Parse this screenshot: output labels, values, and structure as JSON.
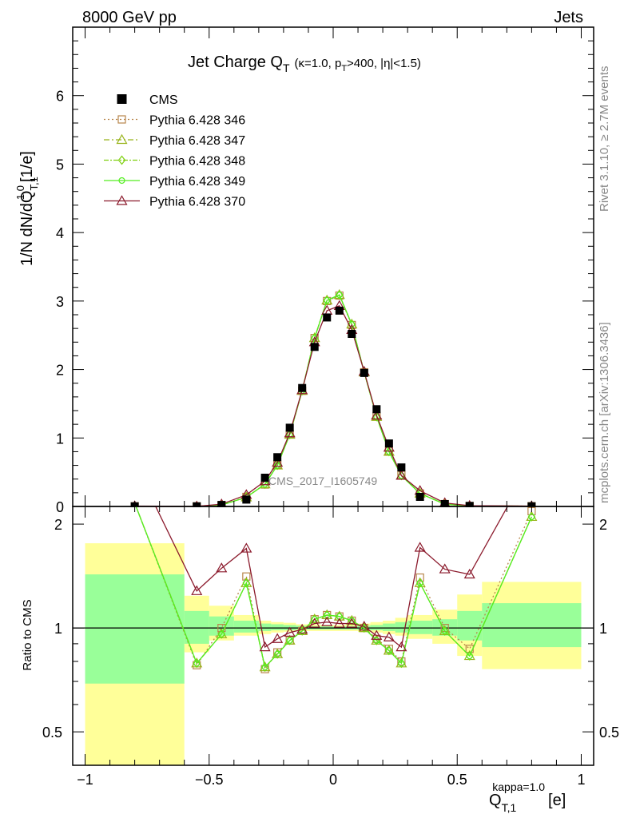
{
  "header": {
    "left": "8000 GeV pp",
    "right": "Jets"
  },
  "side": {
    "rivet": "Rivet 3.1.10, ≥ 2.7M events",
    "mcplots": "mcplots.cern.ch [arXiv:1306.3436]"
  },
  "watermark": "CMS_2017_I1605749",
  "chart_data": {
    "type": "line",
    "title": {
      "main": "Jet Charge Q",
      "main_sub": "T",
      "extra_pre": "(κ=1.0, p",
      "extra_sub": "T",
      "extra_post": ">400, |η|<1.5)"
    },
    "xlabel": {
      "base": "Q",
      "sub": "T,1",
      "sup": "kappa=1.0",
      "unit": "[e]"
    },
    "ylabel_main": {
      "base": "1/N dN/dQ",
      "sub": "T,1",
      "sup": "1.0",
      "unit": "[1/e]"
    },
    "ylabel_ratio": "Ratio to CMS",
    "xlim": [
      -1.05,
      1.05
    ],
    "ylim_main": [
      0,
      7.0
    ],
    "ylim_ratio": [
      0.4,
      2.25
    ],
    "xticks": [
      -1,
      -0.5,
      0,
      0.5,
      1
    ],
    "xtick_labels": [
      "−1",
      "−0.5",
      "0",
      "0.5",
      "1"
    ],
    "yticks_main": [
      0,
      1,
      2,
      3,
      4,
      5,
      6
    ],
    "yticks_ratio": [
      0.5,
      1,
      2
    ],
    "ytick_labels_ratio": [
      "0.5",
      "1",
      "2"
    ],
    "legend": {
      "position": "top-left",
      "entries": [
        "CMS",
        "Pythia 6.428 346",
        "Pythia 6.428 347",
        "Pythia 6.428 348",
        "Pythia 6.428 349",
        "Pythia 6.428 370"
      ]
    },
    "x": [
      -0.8,
      -0.55,
      -0.45,
      -0.35,
      -0.275,
      -0.225,
      -0.175,
      -0.125,
      -0.075,
      -0.025,
      0.025,
      0.075,
      0.125,
      0.175,
      0.225,
      0.275,
      0.35,
      0.45,
      0.55,
      0.8
    ],
    "bin_edges": [
      -1.0,
      -0.6,
      -0.5,
      -0.4,
      -0.3,
      -0.25,
      -0.2,
      -0.15,
      -0.1,
      -0.05,
      0.0,
      0.05,
      0.1,
      0.15,
      0.2,
      0.25,
      0.3,
      0.4,
      0.5,
      0.6,
      1.0
    ],
    "cms": [
      0.002,
      0.002,
      0.022,
      0.1,
      0.42,
      0.72,
      1.15,
      1.73,
      2.33,
      2.76,
      2.86,
      2.52,
      1.95,
      1.42,
      0.92,
      0.57,
      0.14,
      0.035,
      0.008,
      0.002
    ],
    "series": [
      {
        "name": "Pythia 6.428 346",
        "color": "#b8864b",
        "marker": "square",
        "dash": "2,3",
        "values": [
          0.003,
          0.0016,
          0.022,
          0.14,
          0.32,
          0.61,
          1.06,
          1.69,
          2.46,
          3.0,
          3.08,
          2.65,
          1.96,
          1.32,
          0.81,
          0.46,
          0.19,
          0.035,
          0.007,
          0.0045
        ]
      },
      {
        "name": "Pythia 6.428 347",
        "color": "#99b41c",
        "marker": "triangle",
        "dash": "7,3,2,3",
        "values": [
          0.003,
          0.0016,
          0.021,
          0.134,
          0.325,
          0.6,
          1.05,
          1.69,
          2.46,
          3.01,
          3.09,
          2.66,
          1.96,
          1.31,
          0.8,
          0.45,
          0.19,
          0.034,
          0.0066,
          0.0042
        ]
      },
      {
        "name": "Pythia 6.428 348",
        "color": "#7fd010",
        "marker": "diamond",
        "dash": "6,2,2,2",
        "values": [
          0.003,
          0.0016,
          0.021,
          0.134,
          0.325,
          0.6,
          1.05,
          1.69,
          2.46,
          3.01,
          3.09,
          2.66,
          1.96,
          1.31,
          0.8,
          0.45,
          0.19,
          0.034,
          0.0066,
          0.0042
        ]
      },
      {
        "name": "Pythia 6.428 349",
        "color": "#55ee22",
        "marker": "circle",
        "dash": "",
        "values": [
          0.003,
          0.0016,
          0.021,
          0.134,
          0.325,
          0.6,
          1.05,
          1.69,
          2.46,
          3.01,
          3.09,
          2.66,
          1.96,
          1.31,
          0.8,
          0.45,
          0.19,
          0.034,
          0.0066,
          0.0042
        ]
      },
      {
        "name": "Pythia 6.428 370",
        "color": "#8b1a2c",
        "marker": "triangle",
        "dash": "",
        "values": [
          0.006,
          0.0026,
          0.033,
          0.17,
          0.37,
          0.64,
          1.07,
          1.7,
          2.4,
          2.86,
          2.93,
          2.58,
          1.97,
          1.33,
          0.86,
          0.45,
          0.23,
          0.051,
          0.0115,
          0.006
        ]
      }
    ],
    "ratio_series": [
      [
        2.3,
        0.78,
        1.0,
        1.41,
        0.76,
        0.85,
        0.92,
        0.98,
        1.06,
        1.09,
        1.08,
        1.05,
        1.0,
        0.93,
        0.87,
        0.8,
        1.4,
        1.0,
        0.87,
        2.18
      ],
      [
        2.3,
        0.79,
        0.96,
        1.35,
        0.77,
        0.84,
        0.92,
        0.98,
        1.06,
        1.09,
        1.08,
        1.05,
        1.0,
        0.92,
        0.86,
        0.79,
        1.35,
        0.98,
        0.83,
        2.1
      ],
      [
        2.3,
        0.79,
        0.96,
        1.35,
        0.77,
        0.84,
        0.92,
        0.98,
        1.06,
        1.09,
        1.08,
        1.05,
        1.0,
        0.92,
        0.86,
        0.79,
        1.35,
        0.98,
        0.83,
        2.1
      ],
      [
        2.3,
        0.79,
        0.96,
        1.35,
        0.77,
        0.84,
        0.92,
        0.98,
        1.06,
        1.09,
        1.08,
        1.05,
        1.0,
        0.92,
        0.86,
        0.79,
        1.35,
        0.98,
        0.83,
        2.1
      ],
      [
        3.0,
        1.28,
        1.49,
        1.7,
        0.88,
        0.93,
        0.97,
        0.99,
        1.03,
        1.04,
        1.03,
        1.03,
        1.01,
        0.95,
        0.94,
        0.88,
        1.71,
        1.48,
        1.43,
        3.0
      ]
    ],
    "band_yellow": [
      [
        0.35,
        1.76
      ],
      [
        0.85,
        1.24
      ],
      [
        0.92,
        1.16
      ],
      [
        0.95,
        1.09
      ],
      [
        0.96,
        1.05
      ],
      [
        0.97,
        1.04
      ],
      [
        0.975,
        1.035
      ],
      [
        0.98,
        1.025
      ],
      [
        0.98,
        1.025
      ],
      [
        0.98,
        1.02
      ],
      [
        0.98,
        1.02
      ],
      [
        0.98,
        1.025
      ],
      [
        0.975,
        1.03
      ],
      [
        0.97,
        1.04
      ],
      [
        0.96,
        1.05
      ],
      [
        0.95,
        1.07
      ],
      [
        0.93,
        1.09
      ],
      [
        0.9,
        1.13
      ],
      [
        0.83,
        1.25
      ],
      [
        0.76,
        1.36
      ]
    ],
    "band_green": [
      [
        0.69,
        1.43
      ],
      [
        0.9,
        1.12
      ],
      [
        0.95,
        1.08
      ],
      [
        0.97,
        1.05
      ],
      [
        0.98,
        1.03
      ],
      [
        0.985,
        1.025
      ],
      [
        0.985,
        1.02
      ],
      [
        0.99,
        1.015
      ],
      [
        0.99,
        1.012
      ],
      [
        0.99,
        1.01
      ],
      [
        0.99,
        1.01
      ],
      [
        0.99,
        1.012
      ],
      [
        0.985,
        1.015
      ],
      [
        0.985,
        1.02
      ],
      [
        0.98,
        1.03
      ],
      [
        0.97,
        1.04
      ],
      [
        0.96,
        1.05
      ],
      [
        0.95,
        1.06
      ],
      [
        0.92,
        1.12
      ],
      [
        0.88,
        1.18
      ]
    ],
    "grid": false
  }
}
